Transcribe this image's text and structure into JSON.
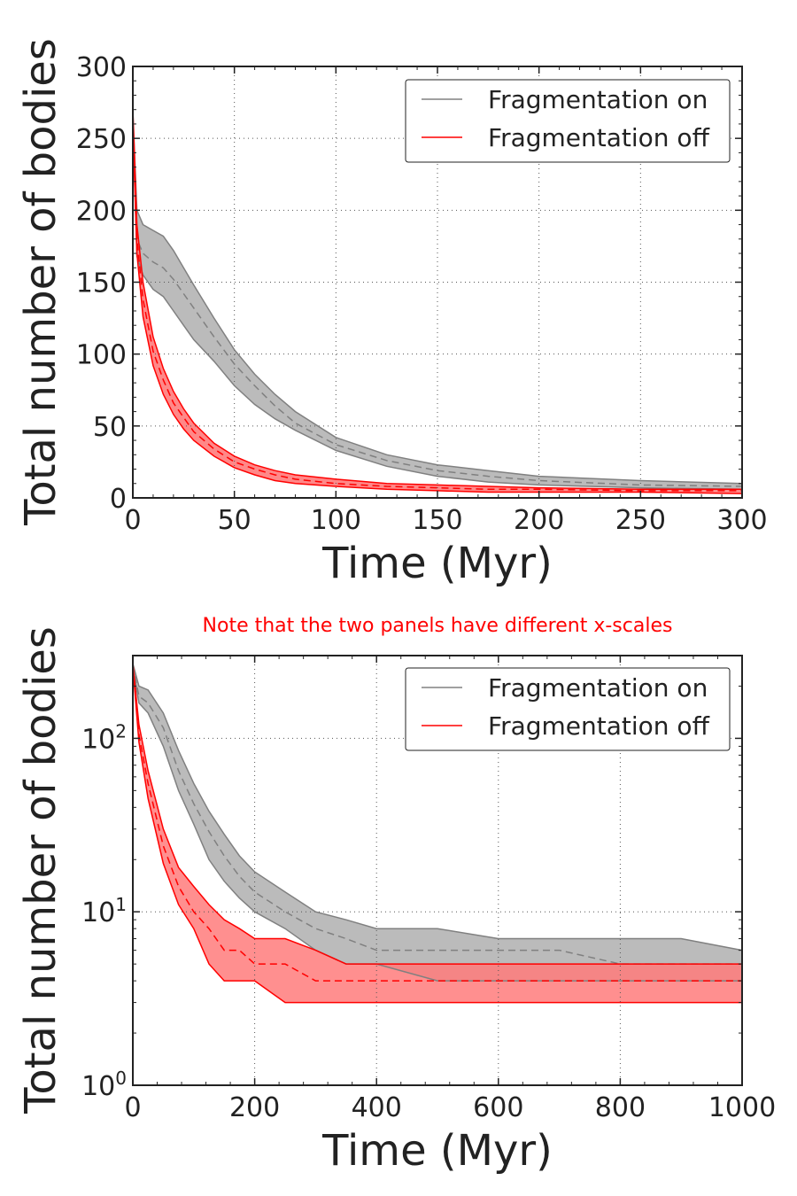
{
  "chart_data": [
    {
      "type": "line",
      "title": "",
      "xlabel": "Time (Myr)",
      "ylabel": "Total number of bodies",
      "xscale": "linear",
      "yscale": "linear",
      "xlim": [
        0,
        300
      ],
      "ylim": [
        0,
        300
      ],
      "xticks": [
        0,
        50,
        100,
        150,
        200,
        250,
        300
      ],
      "xtick_labels": [
        "0",
        "50",
        "100",
        "150",
        "200",
        "250",
        "300"
      ],
      "yticks": [
        0,
        50,
        100,
        150,
        200,
        250,
        300
      ],
      "ytick_labels": [
        "0",
        "50",
        "100",
        "150",
        "200",
        "250",
        "300"
      ],
      "grid": true,
      "legend_position": "top-right",
      "series": [
        {
          "name": "Fragmentation on",
          "color": "#808080",
          "fill_color": "#b4b4b4",
          "x": [
            0,
            2,
            5,
            10,
            15,
            20,
            25,
            30,
            40,
            50,
            60,
            70,
            80,
            100,
            125,
            150,
            175,
            200,
            250,
            300
          ],
          "upper": [
            270,
            200,
            190,
            186,
            182,
            172,
            160,
            148,
            125,
            103,
            86,
            72,
            60,
            42,
            30,
            23,
            19,
            15,
            12,
            10
          ],
          "median": [
            265,
            180,
            170,
            164,
            160,
            152,
            142,
            132,
            112,
            93,
            78,
            64,
            52,
            37,
            26,
            19,
            15,
            12,
            9,
            8
          ],
          "lower": [
            260,
            168,
            155,
            145,
            140,
            130,
            120,
            110,
            95,
            78,
            65,
            55,
            47,
            33,
            22,
            15,
            11,
            9,
            7,
            6
          ]
        },
        {
          "name": "Fragmentation off",
          "color": "#ff0000",
          "fill_color": "#ff7b7b",
          "x": [
            0,
            2,
            5,
            10,
            15,
            20,
            25,
            30,
            40,
            50,
            60,
            70,
            80,
            100,
            125,
            150,
            175,
            200,
            250,
            300
          ],
          "upper": [
            270,
            190,
            150,
            112,
            90,
            74,
            62,
            52,
            38,
            29,
            23,
            19,
            16,
            13,
            10,
            9,
            8,
            7,
            6,
            6
          ],
          "median": [
            265,
            180,
            138,
            102,
            82,
            66,
            56,
            46,
            34,
            25,
            20,
            16,
            13,
            10,
            8,
            7,
            6,
            6,
            5,
            5
          ],
          "lower": [
            260,
            170,
            126,
            92,
            72,
            58,
            48,
            40,
            29,
            21,
            16,
            12,
            10,
            8,
            6,
            5,
            4,
            4,
            4,
            3
          ]
        }
      ]
    },
    {
      "type": "line",
      "title": "Note that the two panels have different x-scales",
      "xlabel": "Time (Myr)",
      "ylabel": "Total number of bodies",
      "xscale": "linear",
      "yscale": "log",
      "xlim": [
        0,
        1000
      ],
      "ylim": [
        1,
        300
      ],
      "xticks": [
        0,
        200,
        400,
        600,
        800,
        1000
      ],
      "xtick_labels": [
        "0",
        "200",
        "400",
        "600",
        "800",
        "1000"
      ],
      "yticks": [
        1,
        10,
        100
      ],
      "ytick_labels_base": "10",
      "ytick_labels_exp": [
        "0",
        "1",
        "2"
      ],
      "grid": true,
      "legend_position": "top-right",
      "series": [
        {
          "name": "Fragmentation on",
          "color": "#808080",
          "fill_color": "#b4b4b4",
          "x": [
            0,
            10,
            25,
            50,
            75,
            100,
            125,
            150,
            175,
            200,
            250,
            300,
            350,
            400,
            500,
            600,
            700,
            800,
            900,
            1000
          ],
          "upper": [
            270,
            200,
            190,
            140,
            85,
            55,
            38,
            28,
            21,
            17,
            13,
            10,
            9,
            8,
            8,
            7,
            7,
            7,
            7,
            6
          ],
          "median": [
            265,
            175,
            160,
            115,
            65,
            42,
            29,
            21,
            16,
            13,
            10,
            8,
            7,
            6,
            6,
            6,
            6,
            5,
            5,
            5
          ],
          "lower": [
            260,
            160,
            140,
            90,
            50,
            32,
            20,
            15,
            12,
            10,
            8,
            6,
            5,
            5,
            4,
            4,
            4,
            4,
            4,
            4
          ]
        },
        {
          "name": "Fragmentation off",
          "color": "#ff0000",
          "fill_color": "#ff7b7b",
          "x": [
            0,
            10,
            25,
            50,
            75,
            100,
            125,
            150,
            175,
            200,
            250,
            300,
            350,
            400,
            500,
            600,
            700,
            800,
            900,
            1000
          ],
          "upper": [
            270,
            120,
            65,
            30,
            18,
            14,
            11,
            9,
            8,
            7,
            7,
            6,
            5,
            5,
            5,
            5,
            5,
            5,
            5,
            5
          ],
          "median": [
            265,
            105,
            55,
            24,
            14,
            10,
            8,
            6,
            6,
            5,
            5,
            4,
            4,
            4,
            4,
            4,
            4,
            4,
            4,
            4
          ],
          "lower": [
            260,
            95,
            45,
            19,
            11,
            8,
            5,
            4,
            4,
            4,
            3,
            3,
            3,
            3,
            3,
            3,
            3,
            3,
            3,
            3
          ]
        }
      ]
    }
  ]
}
